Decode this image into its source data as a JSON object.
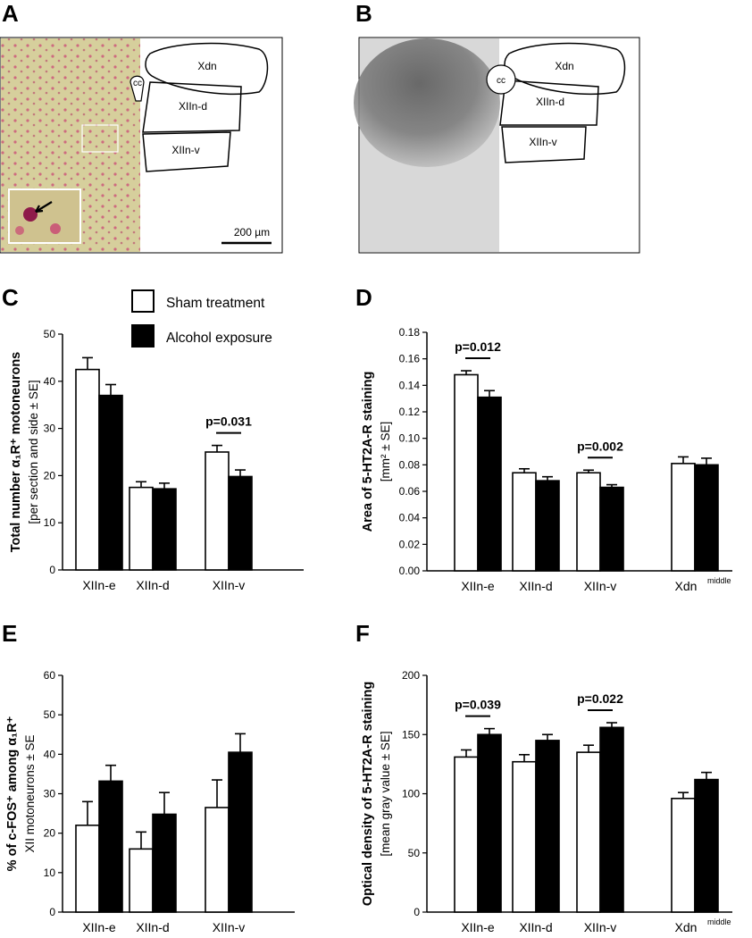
{
  "panels": {
    "A": {
      "letter": "A",
      "regions": [
        "Xdn",
        "XIIn-d",
        "XIIn-v"
      ],
      "cc": "cc",
      "scale_bar": "200 µm"
    },
    "B": {
      "letter": "B",
      "regions": [
        "Xdn",
        "XIIn-d",
        "XIIn-v"
      ],
      "cc": "cc"
    }
  },
  "legend": {
    "sham": "Sham treatment",
    "alcohol": "Alcohol exposure"
  },
  "colors": {
    "sham_fill": "#ffffff",
    "alcohol_fill": "#000000",
    "stain_bg": "#d9d3a0",
    "stain_cells": "#c8326e"
  },
  "chart_data": [
    {
      "panel": "C",
      "type": "bar",
      "categories": [
        "XIIn-e",
        "XIIn-d",
        "XIIn-v"
      ],
      "series": [
        {
          "name": "Sham treatment",
          "values": [
            42.5,
            17.5,
            25.0
          ],
          "errors": [
            2.5,
            1.2,
            1.4
          ]
        },
        {
          "name": "Alcohol exposure",
          "values": [
            37.0,
            17.2,
            19.8
          ],
          "errors": [
            2.3,
            1.2,
            1.4
          ]
        }
      ],
      "ylabel_line1": "Total number α₁R⁺ motoneurons",
      "ylabel_line2": "[per section and side ± SE]",
      "ylim": [
        0,
        50
      ],
      "yticks": [
        "0",
        "10",
        "20",
        "30",
        "40",
        "50"
      ],
      "annotations": [
        {
          "text": "p=0.031",
          "category": "XIIn-v"
        }
      ]
    },
    {
      "panel": "D",
      "type": "bar",
      "categories": [
        "XIIn-e",
        "XIIn-d",
        "XIIn-v",
        "Xdn"
      ],
      "category_superscripts": [
        "",
        "",
        "",
        "middle"
      ],
      "series": [
        {
          "name": "Sham treatment",
          "values": [
            0.148,
            0.074,
            0.074,
            0.081
          ],
          "errors": [
            0.003,
            0.003,
            0.002,
            0.005
          ]
        },
        {
          "name": "Alcohol exposure",
          "values": [
            0.131,
            0.068,
            0.063,
            0.08
          ],
          "errors": [
            0.005,
            0.003,
            0.002,
            0.005
          ]
        }
      ],
      "ylabel_line1": "Area of 5-HT2A-R staining",
      "ylabel_line2": "[mm² ± SE]",
      "ylim": [
        0,
        0.18
      ],
      "yticks": [
        "0.00",
        "0.02",
        "0.04",
        "0.06",
        "0.08",
        "0.10",
        "0.12",
        "0.14",
        "0.16",
        "0.18"
      ],
      "annotations": [
        {
          "text": "p=0.012",
          "category": "XIIn-e"
        },
        {
          "text": "p=0.002",
          "category": "XIIn-v"
        }
      ]
    },
    {
      "panel": "E",
      "type": "bar",
      "categories": [
        "XIIn-e",
        "XIIn-d",
        "XIIn-v"
      ],
      "series": [
        {
          "name": "Sham treatment",
          "values": [
            22.0,
            16.0,
            26.5
          ],
          "errors": [
            6.0,
            4.3,
            7.0
          ]
        },
        {
          "name": "Alcohol exposure",
          "values": [
            33.2,
            24.8,
            40.5
          ],
          "errors": [
            4.0,
            5.5,
            4.7
          ]
        }
      ],
      "ylabel_line1": "% of c-FOS⁺ among α₁R⁺",
      "ylabel_line2": "XII motoneurons ± SE",
      "ylim": [
        0,
        60
      ],
      "yticks": [
        "0",
        "10",
        "20",
        "30",
        "40",
        "50",
        "60"
      ],
      "annotations": []
    },
    {
      "panel": "F",
      "type": "bar",
      "categories": [
        "XIIn-e",
        "XIIn-d",
        "XIIn-v",
        "Xdn"
      ],
      "category_superscripts": [
        "",
        "",
        "",
        "middle"
      ],
      "series": [
        {
          "name": "Sham treatment",
          "values": [
            131,
            127,
            135,
            96
          ],
          "errors": [
            6,
            6,
            6,
            5
          ]
        },
        {
          "name": "Alcohol exposure",
          "values": [
            150,
            145,
            156,
            112
          ],
          "errors": [
            5,
            5,
            4,
            6
          ]
        }
      ],
      "ylabel_line1": "Optical density of 5-HT2A-R staining",
      "ylabel_line2": "[mean gray value ± SE]",
      "ylim": [
        0,
        200
      ],
      "yticks": [
        "0",
        "50",
        "100",
        "150",
        "200"
      ],
      "annotations": [
        {
          "text": "p=0.039",
          "category": "XIIn-e"
        },
        {
          "text": "p=0.022",
          "category": "XIIn-v"
        }
      ]
    }
  ]
}
